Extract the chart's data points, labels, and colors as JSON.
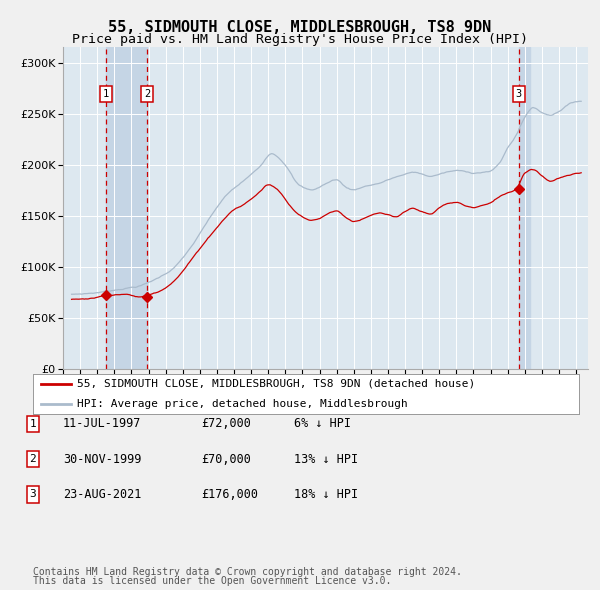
{
  "title": "55, SIDMOUTH CLOSE, MIDDLESBROUGH, TS8 9DN",
  "subtitle": "Price paid vs. HM Land Registry's House Price Index (HPI)",
  "ytick_values": [
    0,
    50000,
    100000,
    150000,
    200000,
    250000,
    300000
  ],
  "ylim": [
    0,
    315000
  ],
  "xlim_start": 1995.3,
  "xlim_end": 2025.7,
  "sale_dates": [
    1997.53,
    1999.92,
    2021.64
  ],
  "sale_prices": [
    72000,
    70000,
    176000
  ],
  "sale_labels": [
    "1",
    "2",
    "3"
  ],
  "legend_line1": "55, SIDMOUTH CLOSE, MIDDLESBROUGH, TS8 9DN (detached house)",
  "legend_line2": "HPI: Average price, detached house, Middlesbrough",
  "table_rows": [
    [
      "1",
      "11-JUL-1997",
      "£72,000",
      "6% ↓ HPI"
    ],
    [
      "2",
      "30-NOV-1999",
      "£70,000",
      "13% ↓ HPI"
    ],
    [
      "3",
      "23-AUG-2021",
      "£176,000",
      "18% ↓ HPI"
    ]
  ],
  "footnote1": "Contains HM Land Registry data © Crown copyright and database right 2024.",
  "footnote2": "This data is licensed under the Open Government Licence v3.0.",
  "hpi_color": "#aabbcc",
  "price_color": "#cc0000",
  "sale_marker_color": "#cc0000",
  "fig_bg_color": "#f0f0f0",
  "plot_bg_color": "#dde8f0",
  "grid_color": "#ffffff",
  "highlight_color": "#c5d5e5",
  "dashed_line_color": "#cc0000",
  "title_fontsize": 11,
  "subtitle_fontsize": 9.5,
  "tick_fontsize": 8,
  "legend_fontsize": 8,
  "table_fontsize": 8.5,
  "footnote_fontsize": 7
}
